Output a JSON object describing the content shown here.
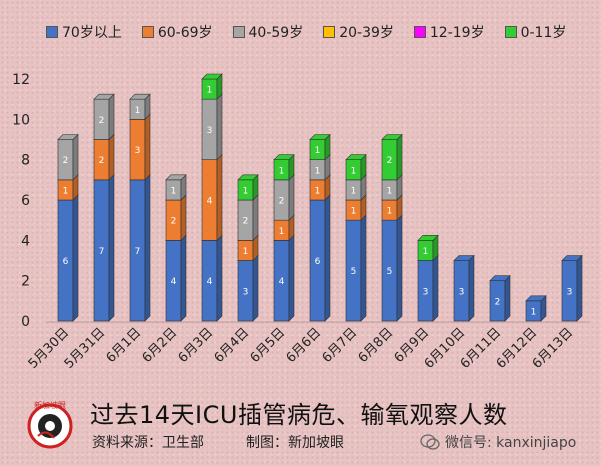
{
  "chart_data": {
    "type": "bar",
    "stacked": true,
    "title": "过去14天ICU插管病危、输氧观察人数",
    "categories": [
      "5月30日",
      "5月31日",
      "6月1日",
      "6月2日",
      "6月3日",
      "6月4日",
      "6月5日",
      "6月6日",
      "6月7日",
      "6月8日",
      "6月9日",
      "6月10日",
      "6月11日",
      "6月12日",
      "6月13日"
    ],
    "ylim": [
      0,
      12
    ],
    "yticks": [
      0,
      2,
      4,
      6,
      8,
      10,
      12
    ],
    "legend_position": "top",
    "series": [
      {
        "name": "70岁以上",
        "color": "#4472c4",
        "values": [
          6,
          7,
          7,
          4,
          4,
          3,
          4,
          6,
          5,
          5,
          3,
          3,
          2,
          1,
          3
        ]
      },
      {
        "name": "60-69岁",
        "color": "#ed7d31",
        "values": [
          1,
          2,
          3,
          2,
          4,
          1,
          1,
          1,
          1,
          1,
          0,
          0,
          0,
          0,
          0
        ]
      },
      {
        "name": "40-59岁",
        "color": "#a5a5a5",
        "values": [
          2,
          2,
          1,
          1,
          3,
          2,
          2,
          1,
          1,
          1,
          0,
          0,
          0,
          0,
          0
        ]
      },
      {
        "name": "20-39岁",
        "color": "#ffc000",
        "values": [
          0,
          0,
          0,
          0,
          0,
          0,
          0,
          0,
          0,
          0,
          0,
          0,
          0,
          0,
          0
        ]
      },
      {
        "name": "12-19岁",
        "color": "#ff00ff",
        "values": [
          0,
          0,
          0,
          0,
          0,
          0,
          0,
          0,
          0,
          0,
          0,
          0,
          0,
          0,
          0
        ]
      },
      {
        "name": "0-11岁",
        "color": "#33cc33",
        "values": [
          0,
          0,
          0,
          0,
          1,
          1,
          1,
          1,
          1,
          2,
          1,
          0,
          0,
          0,
          0
        ]
      }
    ]
  },
  "footer": {
    "source": "资料来源：卫生部",
    "maker": "制图：新加坡眼",
    "wechat": "微信号: kanxinjiapo"
  },
  "logo": {
    "text": "新加坡眼"
  }
}
